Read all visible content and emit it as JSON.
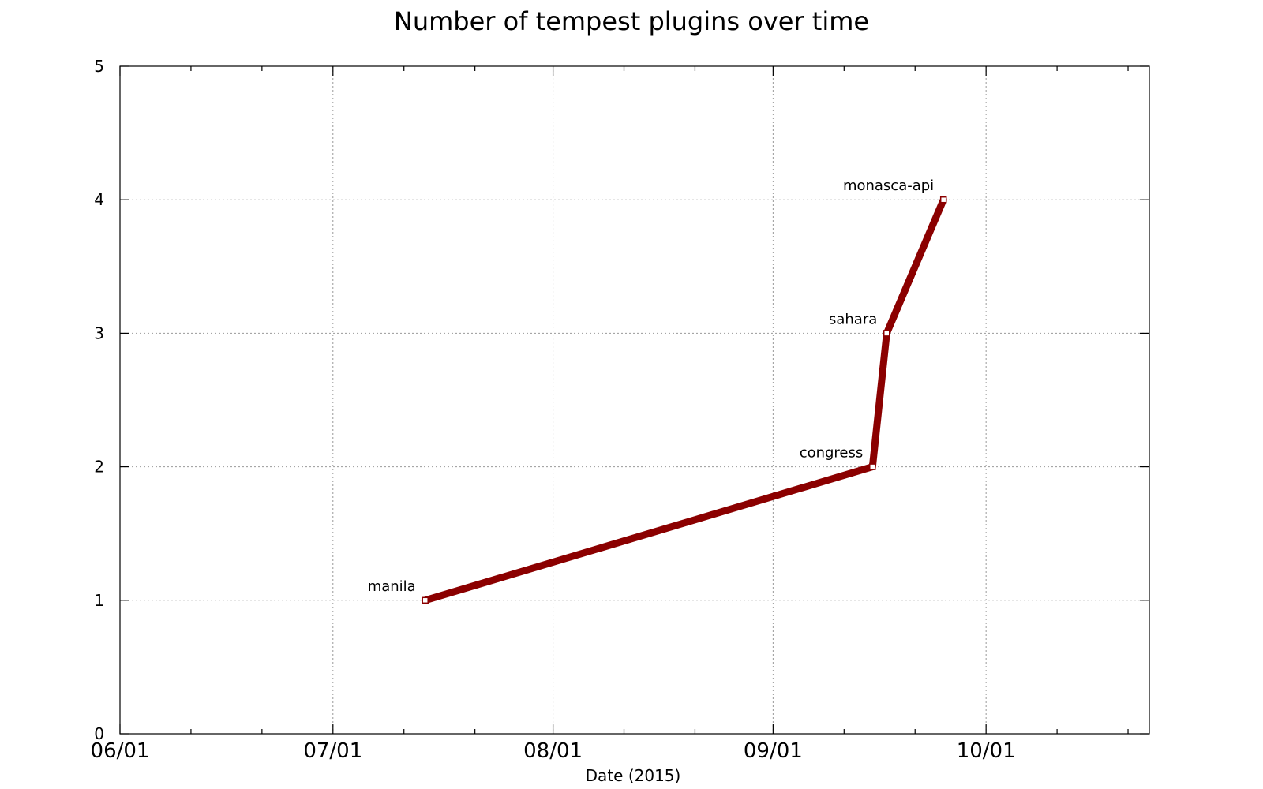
{
  "chart_data": {
    "type": "line",
    "title": "Number of tempest plugins over time",
    "xlabel": "Date (2015)",
    "ylabel": "",
    "x_is_date": true,
    "xlim": [
      "2015-06-01",
      "2015-10-24"
    ],
    "ylim": [
      0,
      5
    ],
    "x_ticks": [
      {
        "date": "2015-06-01",
        "label": "06/01"
      },
      {
        "date": "2015-07-01",
        "label": "07/01"
      },
      {
        "date": "2015-08-01",
        "label": "08/01"
      },
      {
        "date": "2015-09-01",
        "label": "09/01"
      },
      {
        "date": "2015-10-01",
        "label": "10/01"
      }
    ],
    "x_minor_ticks": [
      "2015-06-11",
      "2015-06-21",
      "2015-07-11",
      "2015-07-21",
      "2015-08-11",
      "2015-08-21",
      "2015-09-11",
      "2015-09-21",
      "2015-10-11",
      "2015-10-21"
    ],
    "y_ticks": [
      0,
      1,
      2,
      3,
      4,
      5
    ],
    "grid": true,
    "series": [
      {
        "color": "#8b0000",
        "points": [
          {
            "x": "2015-07-14",
            "y": 1,
            "label": "manila"
          },
          {
            "x": "2015-09-15",
            "y": 2,
            "label": "congress"
          },
          {
            "x": "2015-09-17",
            "y": 3,
            "label": "sahara"
          },
          {
            "x": "2015-09-25",
            "y": 4,
            "label": "monasca-api"
          }
        ]
      }
    ]
  }
}
